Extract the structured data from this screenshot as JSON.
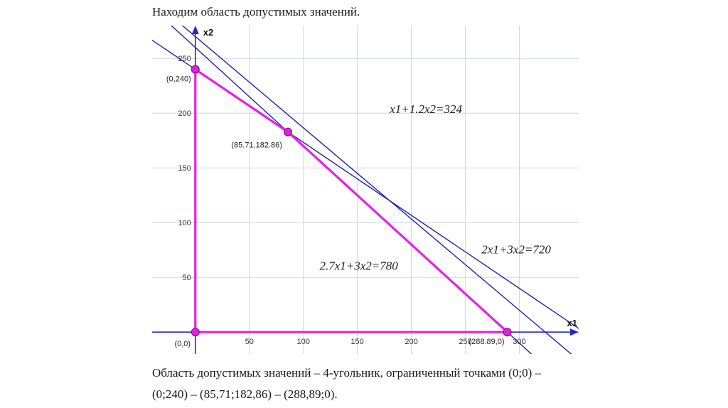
{
  "heading": "Находим область допустимых значений.",
  "caption": {
    "line1": "Область допустимых значений – 4-угольник, ограниченный точками (0;0) –",
    "line2": "(0;240) – (85,71;182,86) – (288,89;0)."
  },
  "colors": {
    "grid": "#cfd6e6",
    "axis": "#2828c8",
    "constraint": "#2323b0",
    "region": "#e620e6",
    "marker_fill": "#dd22dd",
    "marker_stroke": "#7a1070"
  },
  "chart_data": {
    "type": "line",
    "xlabel": "x1",
    "ylabel": "x2",
    "xlim": [
      -40,
      355
    ],
    "ylim": [
      -20,
      280
    ],
    "grid": true,
    "x_ticks": [
      50,
      100,
      150,
      200,
      250,
      300
    ],
    "x_tick_labels": [
      "50",
      "100",
      "150",
      "200",
      "250",
      "300"
    ],
    "y_ticks": [
      50,
      100,
      150,
      200,
      250
    ],
    "y_tick_labels": [
      "50",
      "100",
      "150",
      "200",
      "250"
    ],
    "series": [
      {
        "name": "x1+1.2x2=324",
        "equation": {
          "a": 1,
          "b": 1.2,
          "c": 324
        },
        "label_at": [
          180,
          200
        ]
      },
      {
        "name": "2x1+3x2=720",
        "equation": {
          "a": 2,
          "b": 3,
          "c": 720
        },
        "label_at": [
          265,
          72
        ]
      },
      {
        "name": "2.7x1+3x2=780",
        "equation": {
          "a": 2.7,
          "b": 3,
          "c": 780
        },
        "label_at": [
          115,
          57
        ]
      }
    ],
    "feasible_region": {
      "vertices": [
        [
          0,
          0
        ],
        [
          0,
          240
        ],
        [
          85.71,
          182.86
        ],
        [
          288.89,
          0
        ]
      ],
      "vertex_labels": [
        "(0,0)",
        "(0,240)",
        "(85.71,182.86)",
        "(288.89,0)"
      ]
    }
  }
}
